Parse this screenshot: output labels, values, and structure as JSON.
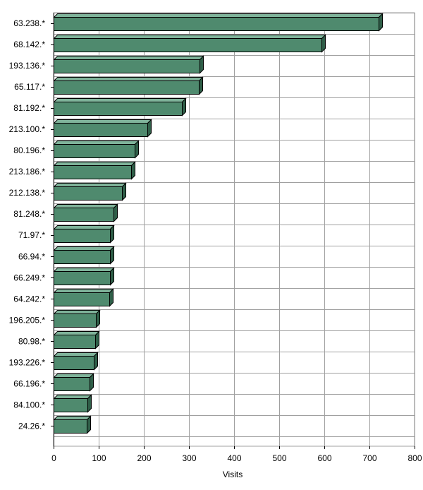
{
  "chart_data": {
    "type": "bar",
    "orientation": "horizontal",
    "title": "",
    "xlabel": "Visits",
    "ylabel": "",
    "xlim": [
      0,
      800
    ],
    "xticks": [
      0,
      100,
      200,
      300,
      400,
      500,
      600,
      700,
      800
    ],
    "grid": true,
    "legend": "none",
    "bar_color": "#4f8a6e",
    "categories": [
      "63.238.*",
      "68.142.*",
      "193.136.*",
      "65.117.*",
      "81.192.*",
      "213.100.*",
      "80.196.*",
      "213.186.*",
      "212.138.*",
      "81.248.*",
      "71.97.*",
      "66.94.*",
      "66.249.*",
      "64.242.*",
      "196.205.*",
      "80.98.*",
      "193.226.*",
      "66.196.*",
      "84.100.*",
      "24.26.*"
    ],
    "values": [
      720,
      593,
      323,
      322,
      285,
      208,
      180,
      172,
      152,
      133,
      125,
      125,
      125,
      123,
      94,
      92,
      89,
      80,
      75,
      74
    ]
  }
}
